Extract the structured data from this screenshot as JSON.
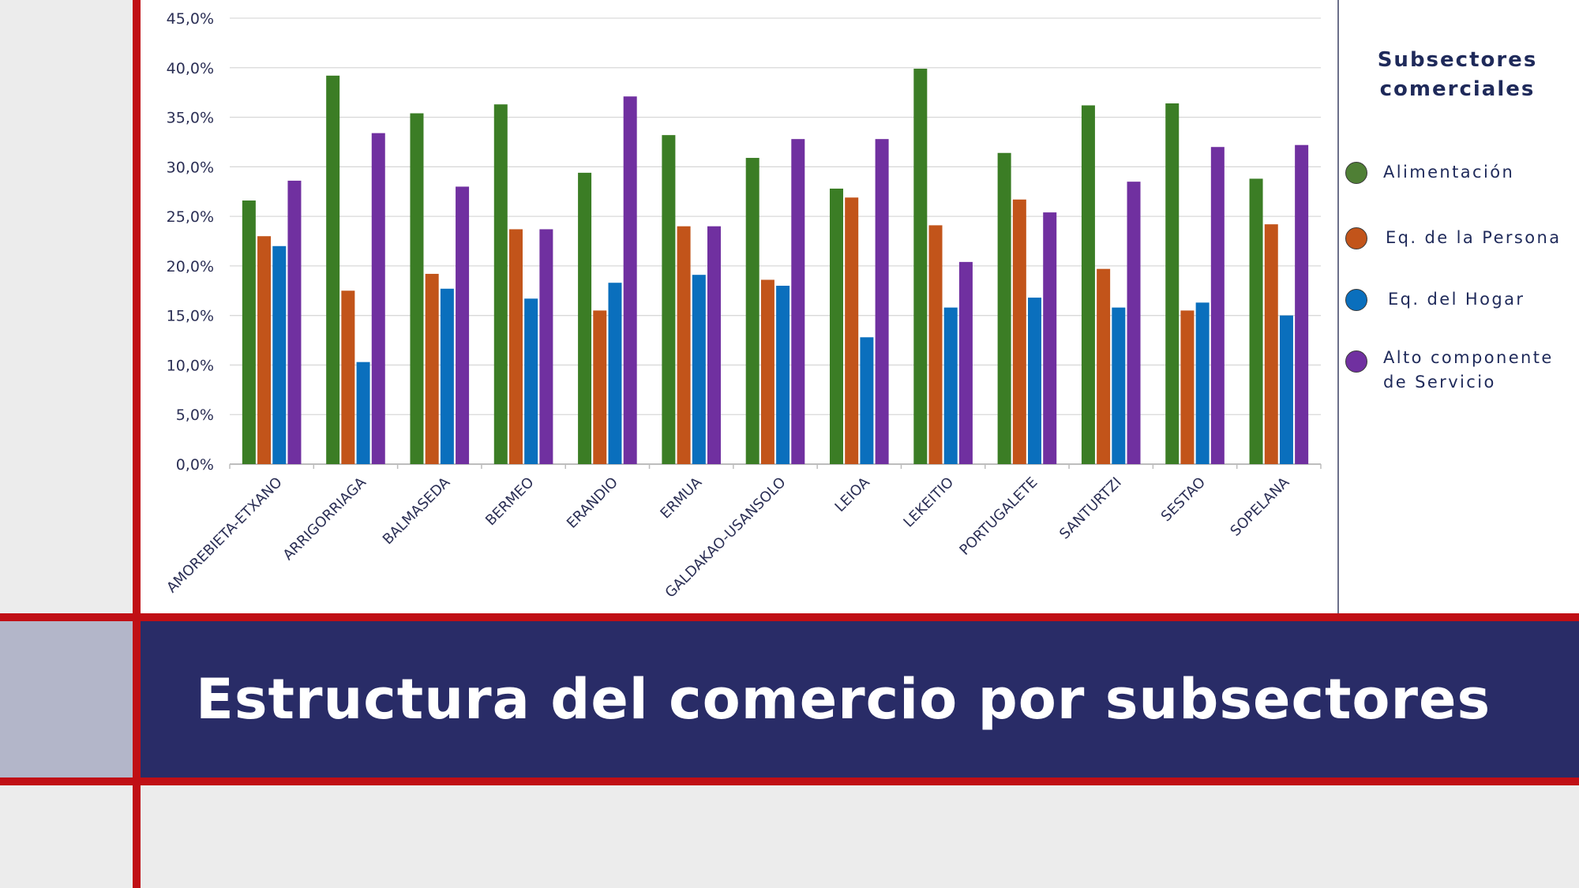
{
  "slide_title": "Estructura del comercio por subsectores",
  "legend": {
    "title": "Subsectores\ncomerciales",
    "items": [
      {
        "label": "Alimentación",
        "color": "#3b7d25"
      },
      {
        "label": "Eq. de la Persona",
        "color": "#c2541a"
      },
      {
        "label": "Eq. del Hogar",
        "color": "#0a6fbd"
      },
      {
        "label": "Alto componente\nde Servicio",
        "color": "#7030a0"
      }
    ]
  },
  "chart_data": {
    "type": "bar",
    "categories": [
      "AMOREBIETA-ETXANO",
      "ARRIGORRIAGA",
      "BALMASEDA",
      "BERMEO",
      "ERANDIO",
      "ERMUA",
      "GALDAKAO-USANSOLO",
      "LEIOA",
      "LEKEITIO",
      "PORTUGALETE",
      "SANTURTZI",
      "SESTAO",
      "SOPELANA"
    ],
    "series": [
      {
        "name": "Alimentación",
        "color": "#3b7d25",
        "values": [
          26.6,
          39.2,
          35.4,
          36.3,
          29.4,
          33.2,
          30.9,
          27.8,
          39.9,
          31.4,
          36.2,
          36.4,
          28.8
        ]
      },
      {
        "name": "Eq. de la Persona",
        "color": "#c2541a",
        "values": [
          23.0,
          17.5,
          19.2,
          23.7,
          15.5,
          24.0,
          18.6,
          26.9,
          24.1,
          26.7,
          19.7,
          15.5,
          24.2
        ]
      },
      {
        "name": "Eq. del Hogar",
        "color": "#0a6fbd",
        "values": [
          22.0,
          10.3,
          17.7,
          16.7,
          18.3,
          19.1,
          18.0,
          12.8,
          15.8,
          16.8,
          15.8,
          16.3,
          15.0
        ]
      },
      {
        "name": "Alto componente de Servicio",
        "color": "#7030a0",
        "values": [
          28.6,
          33.4,
          28.0,
          23.7,
          37.1,
          24.0,
          32.8,
          32.8,
          20.4,
          25.4,
          28.5,
          32.0,
          32.2
        ]
      }
    ],
    "yticks": [
      "0,0%",
      "5,0%",
      "10,0%",
      "15,0%",
      "20,0%",
      "25,0%",
      "30,0%",
      "35,0%",
      "40,0%",
      "45,0%"
    ],
    "ylim": [
      0,
      45
    ],
    "grid": true,
    "legend_position": "right"
  }
}
